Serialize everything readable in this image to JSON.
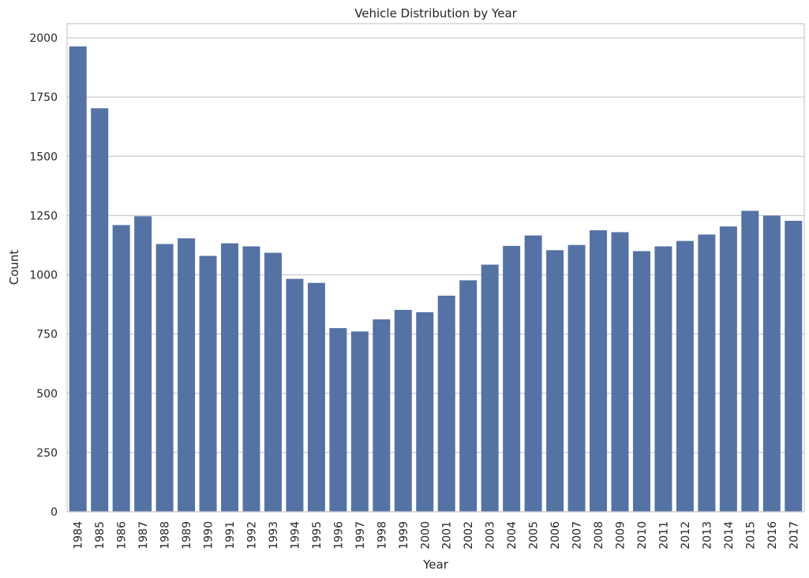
{
  "chart_data": {
    "type": "bar",
    "title": "Vehicle Distribution by Year",
    "xlabel": "Year",
    "ylabel": "Count",
    "ylim": [
      0,
      2060
    ],
    "yticks": [
      0,
      250,
      500,
      750,
      1000,
      1250,
      1500,
      1750,
      2000
    ],
    "grid": true,
    "bar_color": "#5572a4",
    "grid_color": "#cccccc",
    "categories": [
      "1984",
      "1985",
      "1986",
      "1987",
      "1988",
      "1989",
      "1990",
      "1991",
      "1992",
      "1993",
      "1994",
      "1995",
      "1996",
      "1997",
      "1998",
      "1999",
      "2000",
      "2001",
      "2002",
      "2003",
      "2004",
      "2005",
      "2006",
      "2007",
      "2008",
      "2009",
      "2010",
      "2011",
      "2012",
      "2013",
      "2014",
      "2015",
      "2016",
      "2017"
    ],
    "values": [
      1964,
      1703,
      1210,
      1247,
      1130,
      1154,
      1080,
      1133,
      1120,
      1093,
      983,
      966,
      775,
      761,
      812,
      852,
      842,
      912,
      977,
      1043,
      1122,
      1166,
      1104,
      1126,
      1188,
      1180,
      1100,
      1120,
      1143,
      1170,
      1204,
      1270,
      1250,
      1228
    ]
  }
}
